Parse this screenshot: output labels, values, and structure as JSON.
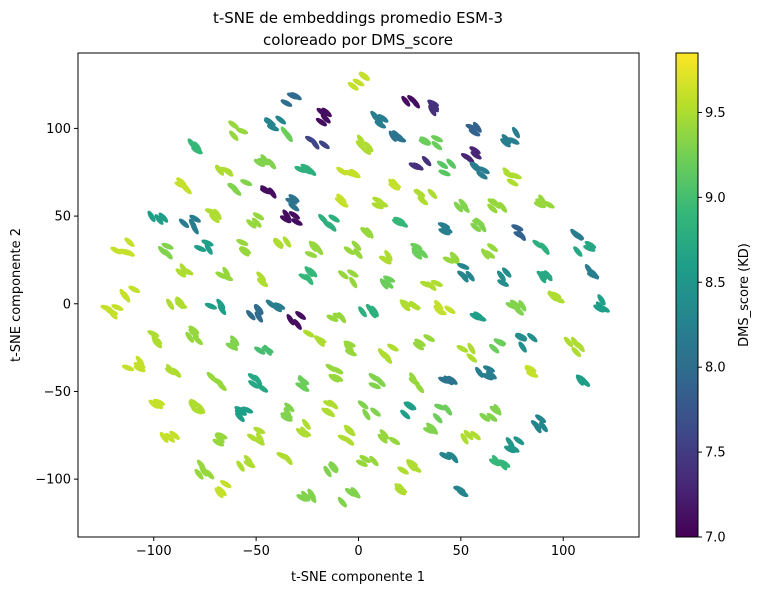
{
  "chart_data": {
    "type": "scatter",
    "title_line1": "t-SNE de embeddings promedio ESM-3",
    "title_line2": "coloreado por DMS_score",
    "xlabel": "t-SNE componente 1",
    "ylabel": "t-SNE componente 2",
    "xlim": [
      -137,
      137
    ],
    "ylim": [
      -133,
      143
    ],
    "xticks": [
      -100,
      -50,
      0,
      50,
      100
    ],
    "yticks": [
      -100,
      -50,
      0,
      50,
      100
    ],
    "grid": false,
    "colorbar": {
      "label": "DMS_score (KD)",
      "range": [
        7.0,
        9.85
      ],
      "ticks": [
        "7.0",
        "7.5",
        "8.0",
        "8.5",
        "9.0",
        "9.5"
      ],
      "colormap": "viridis"
    },
    "clusters": [
      {
        "x": 0,
        "y": 127,
        "v": 9.6
      },
      {
        "x": -32,
        "y": 117,
        "v": 8.0
      },
      {
        "x": -15,
        "y": 107,
        "v": 7.1
      },
      {
        "x": 10,
        "y": 105,
        "v": 8.2
      },
      {
        "x": 25,
        "y": 117,
        "v": 7.1
      },
      {
        "x": 38,
        "y": 113,
        "v": 7.4
      },
      {
        "x": 55,
        "y": 100,
        "v": 7.9
      },
      {
        "x": 75,
        "y": 95,
        "v": 8.2
      },
      {
        "x": -40,
        "y": 102,
        "v": 8.3
      },
      {
        "x": -60,
        "y": 99,
        "v": 9.4
      },
      {
        "x": -80,
        "y": 88,
        "v": 8.9
      },
      {
        "x": -20,
        "y": 91,
        "v": 7.6
      },
      {
        "x": -35,
        "y": 95,
        "v": 9.2
      },
      {
        "x": 2,
        "y": 90,
        "v": 9.5
      },
      {
        "x": 18,
        "y": 95,
        "v": 8.1
      },
      {
        "x": 35,
        "y": 93,
        "v": 9.2
      },
      {
        "x": 55,
        "y": 85,
        "v": 7.3
      },
      {
        "x": 30,
        "y": 78,
        "v": 7.4
      },
      {
        "x": 42,
        "y": 77,
        "v": 9.1
      },
      {
        "x": 58,
        "y": 76,
        "v": 8.2
      },
      {
        "x": 75,
        "y": 72,
        "v": 9.5
      },
      {
        "x": -85,
        "y": 68,
        "v": 9.6
      },
      {
        "x": -65,
        "y": 75,
        "v": 9.5
      },
      {
        "x": -45,
        "y": 79,
        "v": 9.3
      },
      {
        "x": -25,
        "y": 76,
        "v": 8.8
      },
      {
        "x": -5,
        "y": 74,
        "v": 9.6
      },
      {
        "x": 15,
        "y": 70,
        "v": 9.6
      },
      {
        "x": -58,
        "y": 67,
        "v": 9.3
      },
      {
        "x": -42,
        "y": 63,
        "v": 7.1
      },
      {
        "x": -30,
        "y": 57,
        "v": 8.1
      },
      {
        "x": -10,
        "y": 58,
        "v": 9.6
      },
      {
        "x": 10,
        "y": 58,
        "v": 9.5
      },
      {
        "x": 33,
        "y": 62,
        "v": 9.5
      },
      {
        "x": 52,
        "y": 58,
        "v": 9.3
      },
      {
        "x": 68,
        "y": 56,
        "v": 9.4
      },
      {
        "x": 90,
        "y": 57,
        "v": 9.4
      },
      {
        "x": -98,
        "y": 47,
        "v": 8.6
      },
      {
        "x": -83,
        "y": 46,
        "v": 8.2
      },
      {
        "x": -70,
        "y": 52,
        "v": 9.5
      },
      {
        "x": -52,
        "y": 47,
        "v": 9.4
      },
      {
        "x": -33,
        "y": 49,
        "v": 7.1
      },
      {
        "x": -15,
        "y": 47,
        "v": 8.8
      },
      {
        "x": 2,
        "y": 42,
        "v": 9.4
      },
      {
        "x": 22,
        "y": 45,
        "v": 8.9
      },
      {
        "x": 45,
        "y": 42,
        "v": 8.2
      },
      {
        "x": 60,
        "y": 46,
        "v": 9.3
      },
      {
        "x": 78,
        "y": 40,
        "v": 7.9
      },
      {
        "x": 105,
        "y": 40,
        "v": 8.2
      },
      {
        "x": -115,
        "y": 32,
        "v": 9.6
      },
      {
        "x": -95,
        "y": 30,
        "v": 9.3
      },
      {
        "x": -75,
        "y": 32,
        "v": 8.6
      },
      {
        "x": -55,
        "y": 32,
        "v": 9.4
      },
      {
        "x": -38,
        "y": 33,
        "v": 9.5
      },
      {
        "x": -20,
        "y": 30,
        "v": 9.4
      },
      {
        "x": -2,
        "y": 30,
        "v": 9.4
      },
      {
        "x": 12,
        "y": 28,
        "v": 9.5
      },
      {
        "x": 30,
        "y": 30,
        "v": 9.2
      },
      {
        "x": 45,
        "y": 25,
        "v": 9.4
      },
      {
        "x": 65,
        "y": 30,
        "v": 9.4
      },
      {
        "x": 88,
        "y": 33,
        "v": 8.8
      },
      {
        "x": 110,
        "y": 33,
        "v": 8.7
      },
      {
        "x": -85,
        "y": 18,
        "v": 9.5
      },
      {
        "x": -65,
        "y": 15,
        "v": 9.4
      },
      {
        "x": -45,
        "y": 15,
        "v": 9.5
      },
      {
        "x": -25,
        "y": 15,
        "v": 8.9
      },
      {
        "x": -5,
        "y": 15,
        "v": 9.4
      },
      {
        "x": 15,
        "y": 12,
        "v": 9.2
      },
      {
        "x": 35,
        "y": 12,
        "v": 9.5
      },
      {
        "x": 52,
        "y": 18,
        "v": 8.3
      },
      {
        "x": 72,
        "y": 15,
        "v": 8.4
      },
      {
        "x": 90,
        "y": 18,
        "v": 8.7
      },
      {
        "x": 112,
        "y": 17,
        "v": 8.2
      },
      {
        "x": -112,
        "y": 5,
        "v": 9.6
      },
      {
        "x": -90,
        "y": 0,
        "v": 9.5
      },
      {
        "x": -70,
        "y": 0,
        "v": 8.6
      },
      {
        "x": -50,
        "y": -5,
        "v": 8.0
      },
      {
        "x": -40,
        "y": 0,
        "v": 8.2
      },
      {
        "x": -30,
        "y": -10,
        "v": 7.1
      },
      {
        "x": -10,
        "y": -10,
        "v": 9.4
      },
      {
        "x": 5,
        "y": -5,
        "v": 8.8
      },
      {
        "x": 25,
        "y": 0,
        "v": 9.5
      },
      {
        "x": 42,
        "y": -2,
        "v": 9.6
      },
      {
        "x": 60,
        "y": -5,
        "v": 8.6
      },
      {
        "x": 78,
        "y": -3,
        "v": 9.3
      },
      {
        "x": 98,
        "y": 2,
        "v": 9.5
      },
      {
        "x": 118,
        "y": 0,
        "v": 8.6
      },
      {
        "x": -120,
        "y": -5,
        "v": 9.6
      },
      {
        "x": -100,
        "y": -20,
        "v": 9.5
      },
      {
        "x": -80,
        "y": -18,
        "v": 9.4
      },
      {
        "x": -62,
        "y": -22,
        "v": 9.3
      },
      {
        "x": -45,
        "y": -25,
        "v": 9.0
      },
      {
        "x": -22,
        "y": -20,
        "v": 9.5
      },
      {
        "x": -5,
        "y": -25,
        "v": 9.4
      },
      {
        "x": 15,
        "y": -28,
        "v": 9.5
      },
      {
        "x": 32,
        "y": -22,
        "v": 9.4
      },
      {
        "x": 52,
        "y": -28,
        "v": 9.5
      },
      {
        "x": 68,
        "y": -25,
        "v": 9.2
      },
      {
        "x": 82,
        "y": -22,
        "v": 8.4
      },
      {
        "x": 105,
        "y": -25,
        "v": 9.5
      },
      {
        "x": -110,
        "y": -35,
        "v": 9.6
      },
      {
        "x": -90,
        "y": -40,
        "v": 9.5
      },
      {
        "x": -70,
        "y": -45,
        "v": 9.4
      },
      {
        "x": -50,
        "y": -45,
        "v": 8.7
      },
      {
        "x": -30,
        "y": -45,
        "v": 9.2
      },
      {
        "x": -10,
        "y": -40,
        "v": 9.4
      },
      {
        "x": 10,
        "y": -45,
        "v": 9.3
      },
      {
        "x": 28,
        "y": -45,
        "v": 9.4
      },
      {
        "x": 45,
        "y": -45,
        "v": 8.1
      },
      {
        "x": 62,
        "y": -40,
        "v": 8.2
      },
      {
        "x": 85,
        "y": -40,
        "v": 9.6
      },
      {
        "x": 108,
        "y": -45,
        "v": 8.6
      },
      {
        "x": -97,
        "y": -58,
        "v": 9.6
      },
      {
        "x": -78,
        "y": -58,
        "v": 9.5
      },
      {
        "x": -55,
        "y": -62,
        "v": 8.6
      },
      {
        "x": -35,
        "y": -62,
        "v": 9.3
      },
      {
        "x": -15,
        "y": -60,
        "v": 9.5
      },
      {
        "x": 5,
        "y": -60,
        "v": 9.3
      },
      {
        "x": 25,
        "y": -60,
        "v": 8.6
      },
      {
        "x": 42,
        "y": -62,
        "v": 9.2
      },
      {
        "x": 65,
        "y": -62,
        "v": 9.3
      },
      {
        "x": 90,
        "y": -68,
        "v": 8.3
      },
      {
        "x": -92,
        "y": -75,
        "v": 9.6
      },
      {
        "x": -70,
        "y": -78,
        "v": 9.4
      },
      {
        "x": -50,
        "y": -75,
        "v": 9.5
      },
      {
        "x": -25,
        "y": -72,
        "v": 9.5
      },
      {
        "x": -5,
        "y": -75,
        "v": 9.5
      },
      {
        "x": 15,
        "y": -75,
        "v": 9.4
      },
      {
        "x": 35,
        "y": -72,
        "v": 9.3
      },
      {
        "x": 55,
        "y": -75,
        "v": 9.5
      },
      {
        "x": 75,
        "y": -80,
        "v": 8.5
      },
      {
        "x": -75,
        "y": -95,
        "v": 9.4
      },
      {
        "x": -55,
        "y": -90,
        "v": 9.5
      },
      {
        "x": -35,
        "y": -90,
        "v": 9.5
      },
      {
        "x": -15,
        "y": -93,
        "v": 9.3
      },
      {
        "x": 5,
        "y": -90,
        "v": 9.4
      },
      {
        "x": 25,
        "y": -92,
        "v": 9.5
      },
      {
        "x": 45,
        "y": -90,
        "v": 8.3
      },
      {
        "x": 70,
        "y": -90,
        "v": 8.9
      },
      {
        "x": -25,
        "y": -110,
        "v": 9.3
      },
      {
        "x": -5,
        "y": -110,
        "v": 9.3
      },
      {
        "x": 20,
        "y": -108,
        "v": 9.5
      },
      {
        "x": 50,
        "y": -105,
        "v": 8.3
      },
      {
        "x": -65,
        "y": -105,
        "v": 9.6
      }
    ]
  }
}
